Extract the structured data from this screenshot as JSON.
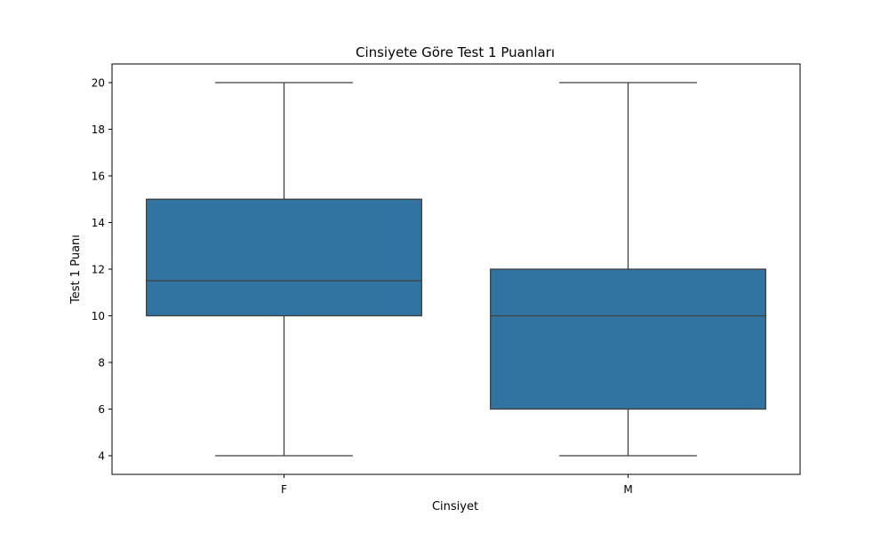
{
  "chart_data": {
    "type": "box",
    "title": "Cinsiyete Göre Test 1 Puanları",
    "xlabel": "Cinsiyet",
    "ylabel": "Test 1 Puanı",
    "categories": [
      "F",
      "M"
    ],
    "series": [
      {
        "values": [
          {
            "category": "F",
            "min": 4,
            "q1": 10,
            "median": 11.5,
            "q3": 15,
            "max": 20
          },
          {
            "category": "M",
            "min": 4,
            "q1": 6,
            "median": 10,
            "q3": 12,
            "max": 20
          }
        ]
      }
    ],
    "ylim": [
      3.2,
      20.8
    ],
    "yticks": [
      "4",
      "6",
      "8",
      "10",
      "12",
      "14",
      "16",
      "18",
      "20"
    ],
    "grid": false,
    "colors": {
      "box_fill": "#3274a1",
      "box_edge": "#3f3f3f",
      "axis": "#000000"
    }
  }
}
